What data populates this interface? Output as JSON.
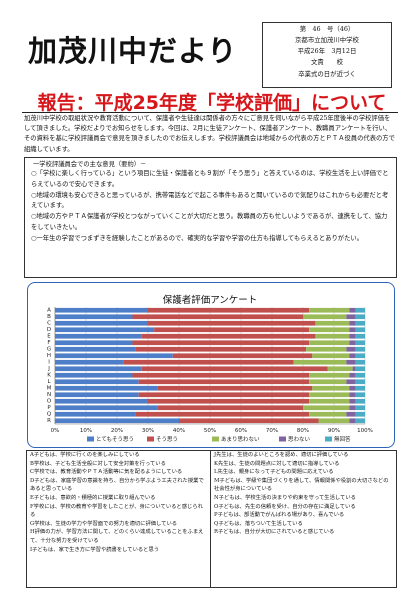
{
  "masthead": {
    "title": "加茂川中だより",
    "issue": "第　46　号（46）",
    "school": "京都市立加茂川中学校",
    "date": "平成26年　3月12日",
    "editor": "文責　　校",
    "note": "卒業式の日が近づく"
  },
  "report": {
    "title": "報告：平成25年度「学校評価」について",
    "intro": "加茂川中学校の取組状況や教育活動について、保護者や生徒達は関係者の方々にご意見を伺いながら平成25年度後半の学校評価をして頂きました。学校だよりでお知らせをします。今回は、2月に生徒アンケート、保護者アンケート、教職員アンケートを行い、その資料を基に学校評議員会で意見を頂きましたのでお伝えします。学校評議員会は地域からの代表の方とＰＴＡ役員の代表の方で組織しています。"
  },
  "opinions": {
    "heading": "一学校評議員会での主な意見（要約）－",
    "items": [
      "○「学校に楽しく行っている」という項目に生徒・保護者とも９割が「そう思う」と答えているのは、学校生活を上い評価でとらえているので安心できます。",
      "○地域の環境も安心できると思っているが、携帯電話などで起こる事件もあると聞いているので気配りはこれからも必要だと考えています。",
      "○地域の方やＰＴＡ保護者が学校とつながっていくことが大切だと思う。教職員の方も忙しいようであるが、連携をして、協力をしていきたい。",
      "○一年生の学習でつまずきを経験したことがあるので、確実的な学習や学習の仕方も指導してもらえるとありがたい。"
    ]
  },
  "chart_data": {
    "type": "bar",
    "stacked": true,
    "orientation": "horizontal",
    "title": "保護者評価アンケート",
    "categories": [
      "A",
      "B",
      "C",
      "D",
      "E",
      "F",
      "G",
      "H",
      "I",
      "J",
      "K",
      "L",
      "M",
      "N",
      "O",
      "P",
      "Q",
      "R"
    ],
    "xlim": [
      0,
      100
    ],
    "xticks": [
      "0%",
      "10%",
      "20%",
      "30%",
      "40%",
      "50%",
      "60%",
      "70%",
      "80%",
      "90%",
      "100%"
    ],
    "legend_position": "bottom",
    "colors": [
      "#4f7ec9",
      "#c0504d",
      "#9bbb59",
      "#8064a2",
      "#4bacc6"
    ],
    "series": [
      {
        "name": "とてもそう思う",
        "values": [
          30,
          25,
          30,
          32,
          28,
          25,
          26,
          38,
          22,
          28,
          25,
          27,
          33,
          27,
          30,
          33,
          26,
          40
        ]
      },
      {
        "name": "そう思う",
        "values": [
          52,
          55,
          54,
          50,
          56,
          57,
          55,
          45,
          55,
          60,
          57,
          55,
          50,
          55,
          52,
          47,
          56,
          45
        ]
      },
      {
        "name": "あまり思わない",
        "values": [
          13,
          14,
          11,
          13,
          11,
          13,
          13,
          12,
          17,
          8,
          13,
          12,
          12,
          13,
          13,
          15,
          12,
          10
        ]
      },
      {
        "name": "思わない",
        "values": [
          2,
          3,
          2,
          2,
          2,
          2,
          3,
          2,
          3,
          1,
          2,
          3,
          2,
          2,
          2,
          2,
          3,
          2
        ]
      },
      {
        "name": "無回答",
        "values": [
          3,
          3,
          3,
          3,
          3,
          3,
          3,
          3,
          3,
          3,
          3,
          3,
          3,
          3,
          3,
          3,
          3,
          3
        ]
      }
    ]
  },
  "notes": {
    "left": [
      "A子どもは、学校に行くのを楽しみにしている",
      "B学校は、子ども生活全般に対して安全対策を行っている",
      "C学校では、教育活動やＰＴＡ活動等に気を配るようにしている",
      "D子どもは、家庭学習の意識を持ち、自分から学ぶよう工夫された授業であると思っている",
      "E子どもは、意欲的・積極的に授業に取り組んでいる",
      "F学校には、学校の教育や学習をしたことが、身についていると感じられる",
      "G学校は、生徒の学力や学習面での努力を適切に評価している",
      "H評価の力が、学習方法に関して、どのくらい達成していることをふまえて、十分な努力を受けている",
      "I子どもは、家で生き方に学習や読書をしていると思う"
    ],
    "right": [
      "J先生は、生徒のよいところを認め、適切に評価している",
      "K先生は、生徒の問題点に対して適切に指導している",
      "L先生は、親身になって子どもの問題に応えている",
      "M子どもは、学級や集団づくりを通して、情報関係や役割の大切さなどの社会性が身についている",
      "N子どもは、学校生活の決まりや約束を守って生活している",
      "O子どもは、先生の信頼を受け、自分の存在に満足している",
      "P子どもは、部活動でがんばれる場があり、喜んでいる",
      "Q子どもは、落ちついて生活している",
      "R子どもは、自分が大切にされていると感じている"
    ]
  }
}
